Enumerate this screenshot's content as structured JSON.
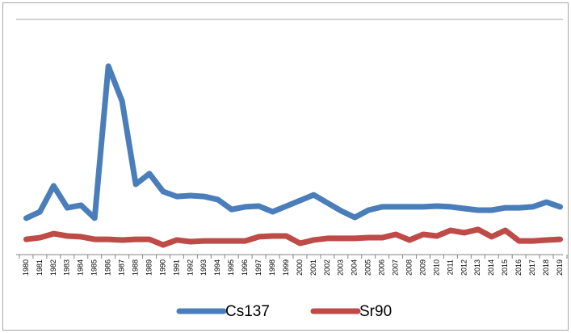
{
  "chart_data": {
    "type": "line",
    "categories": [
      "1980",
      "1981",
      "1982",
      "1983",
      "1984",
      "1985",
      "1986",
      "1987",
      "1988",
      "1989",
      "1990",
      "1991",
      "1992",
      "1993",
      "1994",
      "1995",
      "1996",
      "1997",
      "1998",
      "1999",
      "2000",
      "2001",
      "2002",
      "2003",
      "2004",
      "2005",
      "2006",
      "2007",
      "2008",
      "2009",
      "2010",
      "2011",
      "2012",
      "2013",
      "2014",
      "2015",
      "2016",
      "2017",
      "2018",
      "2019"
    ],
    "series": [
      {
        "name": "Cs137",
        "color": "#4a7ebb",
        "values": [
          15.5,
          18.2,
          29.2,
          19.9,
          21,
          15.5,
          80.1,
          65.3,
          29.9,
          34.4,
          26.8,
          24.7,
          25.1,
          24.7,
          23.4,
          19.2,
          20.3,
          20.6,
          18.2,
          20.6,
          23,
          25.4,
          22,
          18.6,
          15.8,
          18.9,
          20.3,
          20.3,
          20.3,
          20.3,
          20.6,
          20.3,
          19.6,
          18.9,
          18.9,
          19.9,
          19.9,
          20.3,
          22.3,
          20.3
        ]
      },
      {
        "name": "Sr90",
        "color": "#be4b48",
        "values": [
          6.5,
          7.2,
          8.9,
          7.9,
          7.6,
          6.5,
          6.5,
          6.2,
          6.5,
          6.5,
          4.1,
          6.2,
          5.5,
          5.8,
          5.8,
          5.8,
          5.8,
          7.6,
          7.9,
          7.9,
          4.8,
          6.2,
          6.9,
          6.9,
          6.9,
          7.2,
          7.2,
          8.6,
          6.2,
          8.6,
          7.9,
          10.3,
          9.3,
          10.7,
          7.6,
          10.3,
          5.8,
          5.8,
          6.2,
          6.5
        ]
      }
    ],
    "ylim": [
      0,
      100
    ]
  }
}
